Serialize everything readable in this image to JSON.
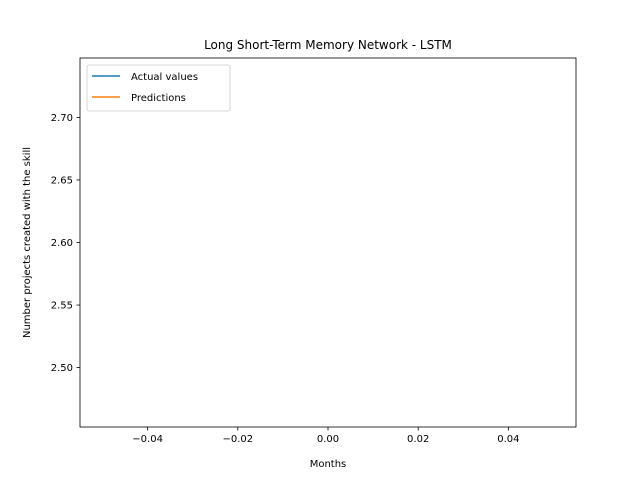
{
  "chart_data": {
    "type": "line",
    "title": "Long Short-Term Memory Network - LSTM",
    "xlabel": "Months",
    "ylabel": "Number projects created with the skill",
    "xlim": [
      -0.055,
      0.055
    ],
    "ylim": [
      2.4525,
      2.7475
    ],
    "x_ticks": [
      -0.04,
      -0.02,
      0.0,
      0.02,
      0.04
    ],
    "x_tick_labels": [
      "−0.04",
      "−0.02",
      "0.00",
      "0.02",
      "0.04"
    ],
    "y_ticks": [
      2.5,
      2.55,
      2.6,
      2.65,
      2.7
    ],
    "y_tick_labels": [
      "2.50",
      "2.55",
      "2.60",
      "2.65",
      "2.70"
    ],
    "grid": false,
    "legend_position": "upper-left",
    "series": [
      {
        "name": "Actual values",
        "color": "#1f77b4",
        "x": [],
        "y": []
      },
      {
        "name": "Predictions",
        "color": "#ff7f0e",
        "x": [],
        "y": []
      }
    ]
  }
}
